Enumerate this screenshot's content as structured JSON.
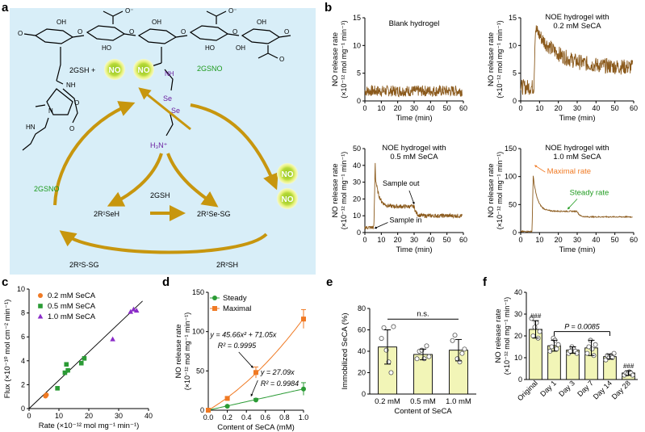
{
  "colors": {
    "gold": "#c7960e",
    "brown": "#8b5a1c",
    "green_text": "#1d9a1d",
    "purple": "#6a1fa0",
    "orange": "#f07a24",
    "green_series": "#2b9b35",
    "bar_fill": "#f2f5b7",
    "panel_a_bg": "#d8eef8"
  },
  "panel_a": {
    "label": "a",
    "text": {
      "gsno_top": "2GSNO",
      "gsh_no": "2GSH +",
      "no1": "NO",
      "no2": "NO",
      "no3": "NO",
      "no4": "NO",
      "gsno_left": "2GSNO",
      "gsh_mid": "2GSH",
      "r1seh": "2R¹SeH",
      "r1sesg": "2R¹Se-SG",
      "r2ssg": "2R²S-SG",
      "r2sh": "2R²SH",
      "se1": "Se",
      "se2": "Se",
      "nh3": "H₃N⁺",
      "nh1": "NH",
      "nh2": "NH",
      "o1": "O",
      "o2": "O",
      "oh1": "OH",
      "oh2": "OH",
      "oh3": "OH",
      "oh4": "OH",
      "ho1": "HO",
      "ho2": "HO",
      "coo1": "O⁻",
      "coo2": "O⁻",
      "o3": "O",
      "o4": "O",
      "o5": "O",
      "o6": "O",
      "o7": "O",
      "n1": "N",
      "hn": "HN",
      "om": "O"
    }
  },
  "chart_data": [
    {
      "panel": "b1",
      "type": "line",
      "title": "Blank hydrogel",
      "xlabel": "Time (min)",
      "ylabel": "NO release rate",
      "ylabel2": "(×10⁻¹² mol mg⁻¹ min⁻¹)",
      "xlim": [
        0,
        60
      ],
      "ylim": [
        0,
        15
      ],
      "xticks": [
        "0",
        "10",
        "20",
        "30",
        "40",
        "50",
        "60"
      ],
      "yticks": [
        "0",
        "5",
        "10",
        "15"
      ],
      "profile": {
        "baseline": 1.8,
        "noise": 1.0
      }
    },
    {
      "panel": "b2",
      "type": "line",
      "title": "NOE hydrogel with",
      "title2": "0.2 mM SeCA",
      "xlabel": "Time (min)",
      "ylabel": "NO release rate",
      "ylabel2": "(×10⁻¹² mol mg⁻¹ min⁻¹)",
      "xlim": [
        0,
        60
      ],
      "ylim": [
        0,
        15
      ],
      "xticks": [
        "0",
        "10",
        "20",
        "30",
        "40",
        "50",
        "60"
      ],
      "yticks": [
        "0",
        "5",
        "10",
        "15"
      ],
      "profile": {
        "baseline": 2.5,
        "t_in": 7,
        "peak": 13.5,
        "steady": 6,
        "t_out": null,
        "after": 3,
        "noise": 1.4
      }
    },
    {
      "panel": "b3",
      "type": "line",
      "title": "NOE hydrogel with",
      "title2": "0.5 mM SeCA",
      "xlabel": "Time (min)",
      "ylabel": "NO release rate",
      "ylabel2": "(×10⁻¹² mol mg⁻¹ min⁻¹)",
      "xlim": [
        0,
        60
      ],
      "ylim": [
        0,
        50
      ],
      "xticks": [
        "0",
        "10",
        "20",
        "30",
        "40",
        "50",
        "60"
      ],
      "yticks": [
        "0",
        "10",
        "20",
        "30",
        "40",
        "50"
      ],
      "annotations": [
        "Sample out",
        "Sample in"
      ],
      "profile": {
        "baseline": 3,
        "t_in": 5.5,
        "peak": 42,
        "steady": 15.5,
        "t_out": 30,
        "after": 10,
        "noise": 1.2
      }
    },
    {
      "panel": "b4",
      "type": "line",
      "title": "NOE hydrogel with",
      "title2": "1.0 mM SeCA",
      "xlabel": "Time (min)",
      "ylabel": "NO release rate",
      "ylabel2": "(×10⁻¹² mol mg⁻¹ min⁻¹)",
      "xlim": [
        0,
        60
      ],
      "ylim": [
        0,
        150
      ],
      "xticks": [
        "0",
        "10",
        "20",
        "30",
        "40",
        "50",
        "60"
      ],
      "yticks": [
        "0",
        "50",
        "100",
        "150"
      ],
      "annotations": [
        "Maximal rate",
        "Steady rate"
      ],
      "profile": {
        "baseline": 2,
        "t_in": 6,
        "peak": 122,
        "steady": 38,
        "t_out": 30,
        "after": 28,
        "noise": 1.0
      }
    },
    {
      "panel": "c",
      "type": "scatter",
      "xlabel": "Rate (×10⁻¹² mol mg⁻¹ min⁻¹)",
      "ylabel": "Flux (×10⁻¹⁰ mol cm⁻² min⁻¹)",
      "xlim": [
        0,
        40
      ],
      "ylim": [
        0,
        10
      ],
      "xticks": [
        "0",
        "10",
        "20",
        "30",
        "40"
      ],
      "yticks": [
        "0",
        "2",
        "4",
        "6",
        "8",
        "10"
      ],
      "series": [
        {
          "name": "0.2 mM SeCA",
          "x": [
            5.5,
            5.8
          ],
          "y": [
            1.05,
            1.15
          ]
        },
        {
          "name": "0.5 mM SeCA",
          "x": [
            9.5,
            12,
            12.5,
            13,
            17.5,
            18.5
          ],
          "y": [
            1.7,
            3.0,
            3.7,
            3.2,
            3.8,
            4.2
          ]
        },
        {
          "name": "1.0 mM SeCA",
          "x": [
            28,
            34,
            35,
            36
          ],
          "y": [
            5.8,
            8.1,
            8.3,
            8.2
          ]
        }
      ],
      "fit": {
        "x": [
          0,
          38
        ],
        "y": [
          0,
          9.0
        ]
      }
    },
    {
      "panel": "d",
      "type": "line",
      "xlabel": "Content of SeCA (mM)",
      "ylabel": "NO release rate",
      "ylabel2": "(×10⁻¹² mol mg⁻¹ min⁻¹)",
      "xlim": [
        0,
        1.0
      ],
      "ylim": [
        0,
        150
      ],
      "xticks": [
        "0.0",
        "0.2",
        "0.4",
        "0.6",
        "0.8",
        "1.0"
      ],
      "yticks": [
        "0",
        "50",
        "100",
        "150"
      ],
      "series": [
        {
          "name": "Steady",
          "x": [
            0,
            0.2,
            0.5,
            1.0
          ],
          "values": [
            0,
            5,
            13,
            27
          ],
          "err": [
            0,
            1,
            2,
            8
          ]
        },
        {
          "name": "Maximal",
          "x": [
            0,
            0.2,
            0.5,
            1.0
          ],
          "values": [
            0,
            15,
            48,
            116
          ],
          "err": [
            0,
            2,
            7,
            12
          ]
        }
      ],
      "equations": {
        "maximal": "y = 45.66x² + 71.05x",
        "maximal_r2": "R² = 0.9995",
        "steady": "y = 27.09x",
        "steady_r2": "R² = 0.9984"
      }
    },
    {
      "panel": "e",
      "type": "bar",
      "xlabel": "Content of SeCA",
      "ylabel": "Immobilized SeCA (%)",
      "ylim": [
        0,
        80
      ],
      "yticks": [
        "0",
        "20",
        "40",
        "60",
        "80"
      ],
      "categories": [
        "0.2 mM",
        "0.5 mM",
        "1.0 mM"
      ],
      "values": [
        44,
        37,
        41
      ],
      "err": [
        16,
        5,
        10
      ],
      "points": [
        [
          52,
          62,
          41,
          30,
          20,
          63
        ],
        [
          33,
          40,
          41,
          33,
          45,
          35
        ],
        [
          50,
          55,
          33,
          30,
          38,
          42
        ]
      ],
      "sig": "n.s."
    },
    {
      "panel": "f",
      "type": "bar",
      "ylabel": "NO release rate",
      "ylabel2": "(×10⁻¹² mol mg⁻¹ min⁻¹)",
      "ylim": [
        0,
        40
      ],
      "yticks": [
        "0",
        "10",
        "20",
        "30",
        "40"
      ],
      "categories": [
        "Original",
        "Day 1",
        "Day 3",
        "Day 7",
        "Day 14",
        "Day 28"
      ],
      "values": [
        23,
        15.5,
        13.5,
        14.5,
        10.5,
        3
      ],
      "err": [
        4,
        2.5,
        1.5,
        3.5,
        1,
        1
      ],
      "points": [
        [
          28,
          20,
          24,
          26,
          19,
          22
        ],
        [
          13,
          15,
          19,
          18,
          14,
          16
        ],
        [
          12,
          13,
          15,
          14,
          13,
          12
        ],
        [
          12,
          15,
          18,
          14,
          11,
          16
        ],
        [
          9,
          11,
          10,
          11,
          10,
          12
        ],
        [
          2,
          3,
          2.5,
          3.5,
          3,
          2
        ]
      ],
      "marks": [
        "###",
        "",
        "",
        "",
        "",
        "###"
      ],
      "pvalue": "P = 0.0085"
    }
  ],
  "labels": {
    "a": "a",
    "b": "b",
    "c": "c",
    "d": "d",
    "e": "e",
    "f": "f"
  }
}
